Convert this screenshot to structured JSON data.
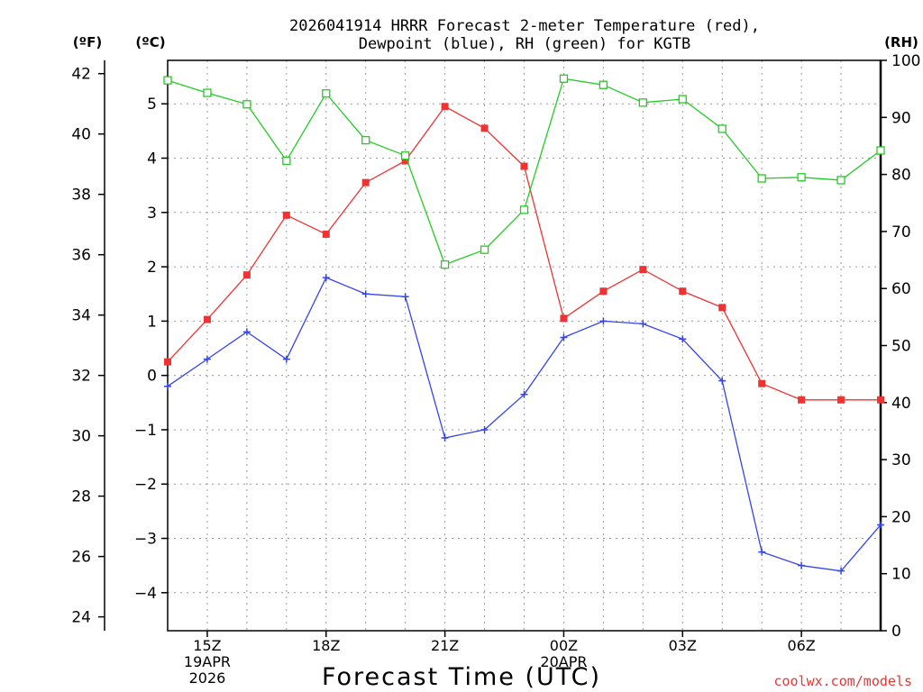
{
  "title_line1": "2026041914 HRRR Forecast 2-meter Temperature (red),",
  "title_line2": "Dewpoint (blue), RH (green) for KGTB",
  "unit_f": "(ºF)",
  "unit_c": "(ºC)",
  "unit_rh": "(RH)",
  "xlabel": "Forecast Time (UTC)",
  "credit": "coolwx.com/models",
  "colors": {
    "temperature": "#ee3333",
    "dewpoint": "#3344ee",
    "rh": "#22cc22",
    "grid": "#999999"
  },
  "chart_data": {
    "type": "line",
    "title": "2026041914 HRRR Forecast 2-meter Temperature (red), Dewpoint (blue), RH (green) for KGTB",
    "xlabel": "Forecast Time (UTC)",
    "x": [
      14,
      15,
      16,
      17,
      18,
      19,
      20,
      21,
      22,
      23,
      24,
      25,
      26,
      27,
      28,
      29,
      30,
      31,
      32
    ],
    "xlim": [
      14,
      32
    ],
    "x_ticks": [
      {
        "hour": 15,
        "lines": [
          "15Z",
          "19APR",
          "2026"
        ]
      },
      {
        "hour": 18,
        "lines": [
          "18Z"
        ]
      },
      {
        "hour": 21,
        "lines": [
          "21Z"
        ]
      },
      {
        "hour": 24,
        "lines": [
          "00Z",
          "20APR"
        ]
      },
      {
        "hour": 27,
        "lines": [
          "03Z"
        ]
      },
      {
        "hour": 30,
        "lines": [
          "06Z"
        ]
      }
    ],
    "y_celsius": {
      "lim": [
        -4.7,
        5.8
      ],
      "ticks": [
        -4,
        -3,
        -2,
        -1,
        0,
        1,
        2,
        3,
        4,
        5
      ],
      "tick_labels": [
        "−4",
        "−3",
        "−2",
        "−1",
        "0",
        "1",
        "2",
        "3",
        "4",
        "5"
      ]
    },
    "y_fahrenheit": {
      "ticks": [
        24,
        26,
        28,
        30,
        32,
        34,
        36,
        38,
        40,
        42
      ],
      "tick_labels": [
        "24",
        "26",
        "28",
        "30",
        "32",
        "34",
        "36",
        "38",
        "40",
        "42"
      ]
    },
    "y_rh": {
      "lim": [
        0,
        100
      ],
      "ticks": [
        0,
        10,
        20,
        30,
        40,
        50,
        60,
        70,
        80,
        90,
        100
      ],
      "tick_labels": [
        "0",
        "10",
        "20",
        "30",
        "40",
        "50",
        "60",
        "70",
        "80",
        "90",
        "100"
      ]
    },
    "series": [
      {
        "name": "Temperature",
        "axis": "celsius",
        "marker": "filled-square",
        "values": [
          0.25,
          1.03,
          1.85,
          2.95,
          2.6,
          3.55,
          3.95,
          4.95,
          4.55,
          3.85,
          1.05,
          1.55,
          1.95,
          1.55,
          1.25,
          -0.15,
          -0.45,
          -0.45,
          -0.45
        ]
      },
      {
        "name": "Dewpoint",
        "axis": "celsius",
        "marker": "plus",
        "values": [
          -0.2,
          0.3,
          0.8,
          0.3,
          1.8,
          1.5,
          1.45,
          -1.15,
          -1.0,
          -0.35,
          0.7,
          1.0,
          0.95,
          0.67,
          -0.1,
          -3.25,
          -3.5,
          -3.6,
          -2.75
        ]
      },
      {
        "name": "RH",
        "axis": "rh",
        "marker": "open-square",
        "values": [
          96.5,
          94.3,
          92.3,
          82.4,
          94.2,
          86.0,
          83.3,
          64.2,
          66.8,
          73.8,
          96.8,
          95.7,
          92.6,
          93.2,
          88.0,
          79.3,
          79.5,
          79.0,
          84.2
        ]
      }
    ]
  }
}
